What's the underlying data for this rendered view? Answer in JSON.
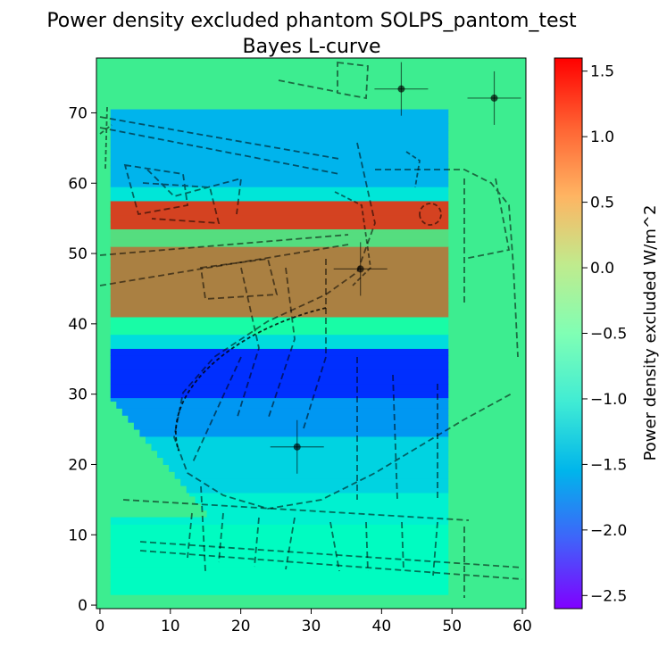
{
  "chart_data": {
    "type": "heatmap",
    "title": "Power density excluded phantom SOLPS_pantom_test",
    "subtitle": "Bayes L-curve",
    "xlim": [
      -0.5,
      60.5
    ],
    "ylim": [
      -0.5,
      77.8
    ],
    "x_ticks": [
      "0",
      "10",
      "20",
      "30",
      "40",
      "50",
      "60"
    ],
    "y_ticks": [
      "0",
      "10",
      "20",
      "30",
      "40",
      "50",
      "60",
      "70"
    ],
    "colorbar": {
      "label": "Power density excluded W/m^2",
      "min": -2.6,
      "max": 1.6,
      "ticks": [
        "1.5",
        "1.0",
        "0.5",
        "0.0",
        "−0.5",
        "−1.0",
        "−1.5",
        "−2.0",
        "−2.5"
      ],
      "colormap": "rainbow"
    },
    "background_value": 0.0,
    "grid_domain": {
      "x": [
        1.5,
        49.5
      ],
      "y": [
        1.5,
        70.5
      ]
    },
    "bands": [
      {
        "y": [
          1.5,
          11.5
        ],
        "value": -0.7
      },
      {
        "y": [
          11.5,
          16
        ],
        "value": -0.95
      },
      {
        "y": [
          16,
          24
        ],
        "value": -1.3
      },
      {
        "y": [
          24,
          29.5
        ],
        "value": -1.75
      },
      {
        "y": [
          29.5,
          36.5
        ],
        "value": -2.35
      },
      {
        "y": [
          36.5,
          38.5
        ],
        "value": -1.2
      },
      {
        "y": [
          38.5,
          41
        ],
        "value": -0.3
      },
      {
        "y": [
          41,
          51
        ],
        "value": 0.9
      },
      {
        "y": [
          51,
          53.5
        ],
        "value": 0.2
      },
      {
        "y": [
          53.5,
          57.5
        ],
        "value": 1.25
      },
      {
        "y": [
          57.5,
          59.5
        ],
        "value": -1.1
      },
      {
        "y": [
          59.5,
          70.5
        ],
        "value": -1.55
      }
    ],
    "markers": [
      {
        "x": 42.8,
        "y": 73.4
      },
      {
        "x": 56.0,
        "y": 72.1
      },
      {
        "x": 37.0,
        "y": 47.8
      },
      {
        "x": 28.0,
        "y": 22.5
      }
    ]
  }
}
